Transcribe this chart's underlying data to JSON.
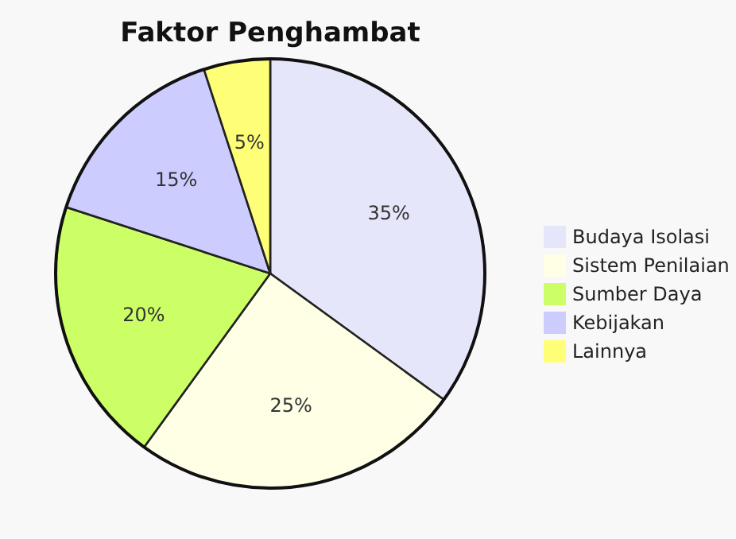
{
  "chart_data": {
    "type": "pie",
    "title": "Faktor Penghambat",
    "categories": [
      "Budaya Isolasi",
      "Sistem Penilaian",
      "Sumber Daya",
      "Kebijakan",
      "Lainnya"
    ],
    "values": [
      35,
      25,
      20,
      15,
      5
    ],
    "colors": [
      "#e6e6fa",
      "#ffffe6",
      "#ccff66",
      "#ccccff",
      "#ffff77"
    ],
    "value_labels": [
      "35%",
      "25%",
      "20%",
      "15%",
      "5%"
    ],
    "legend": "right"
  }
}
